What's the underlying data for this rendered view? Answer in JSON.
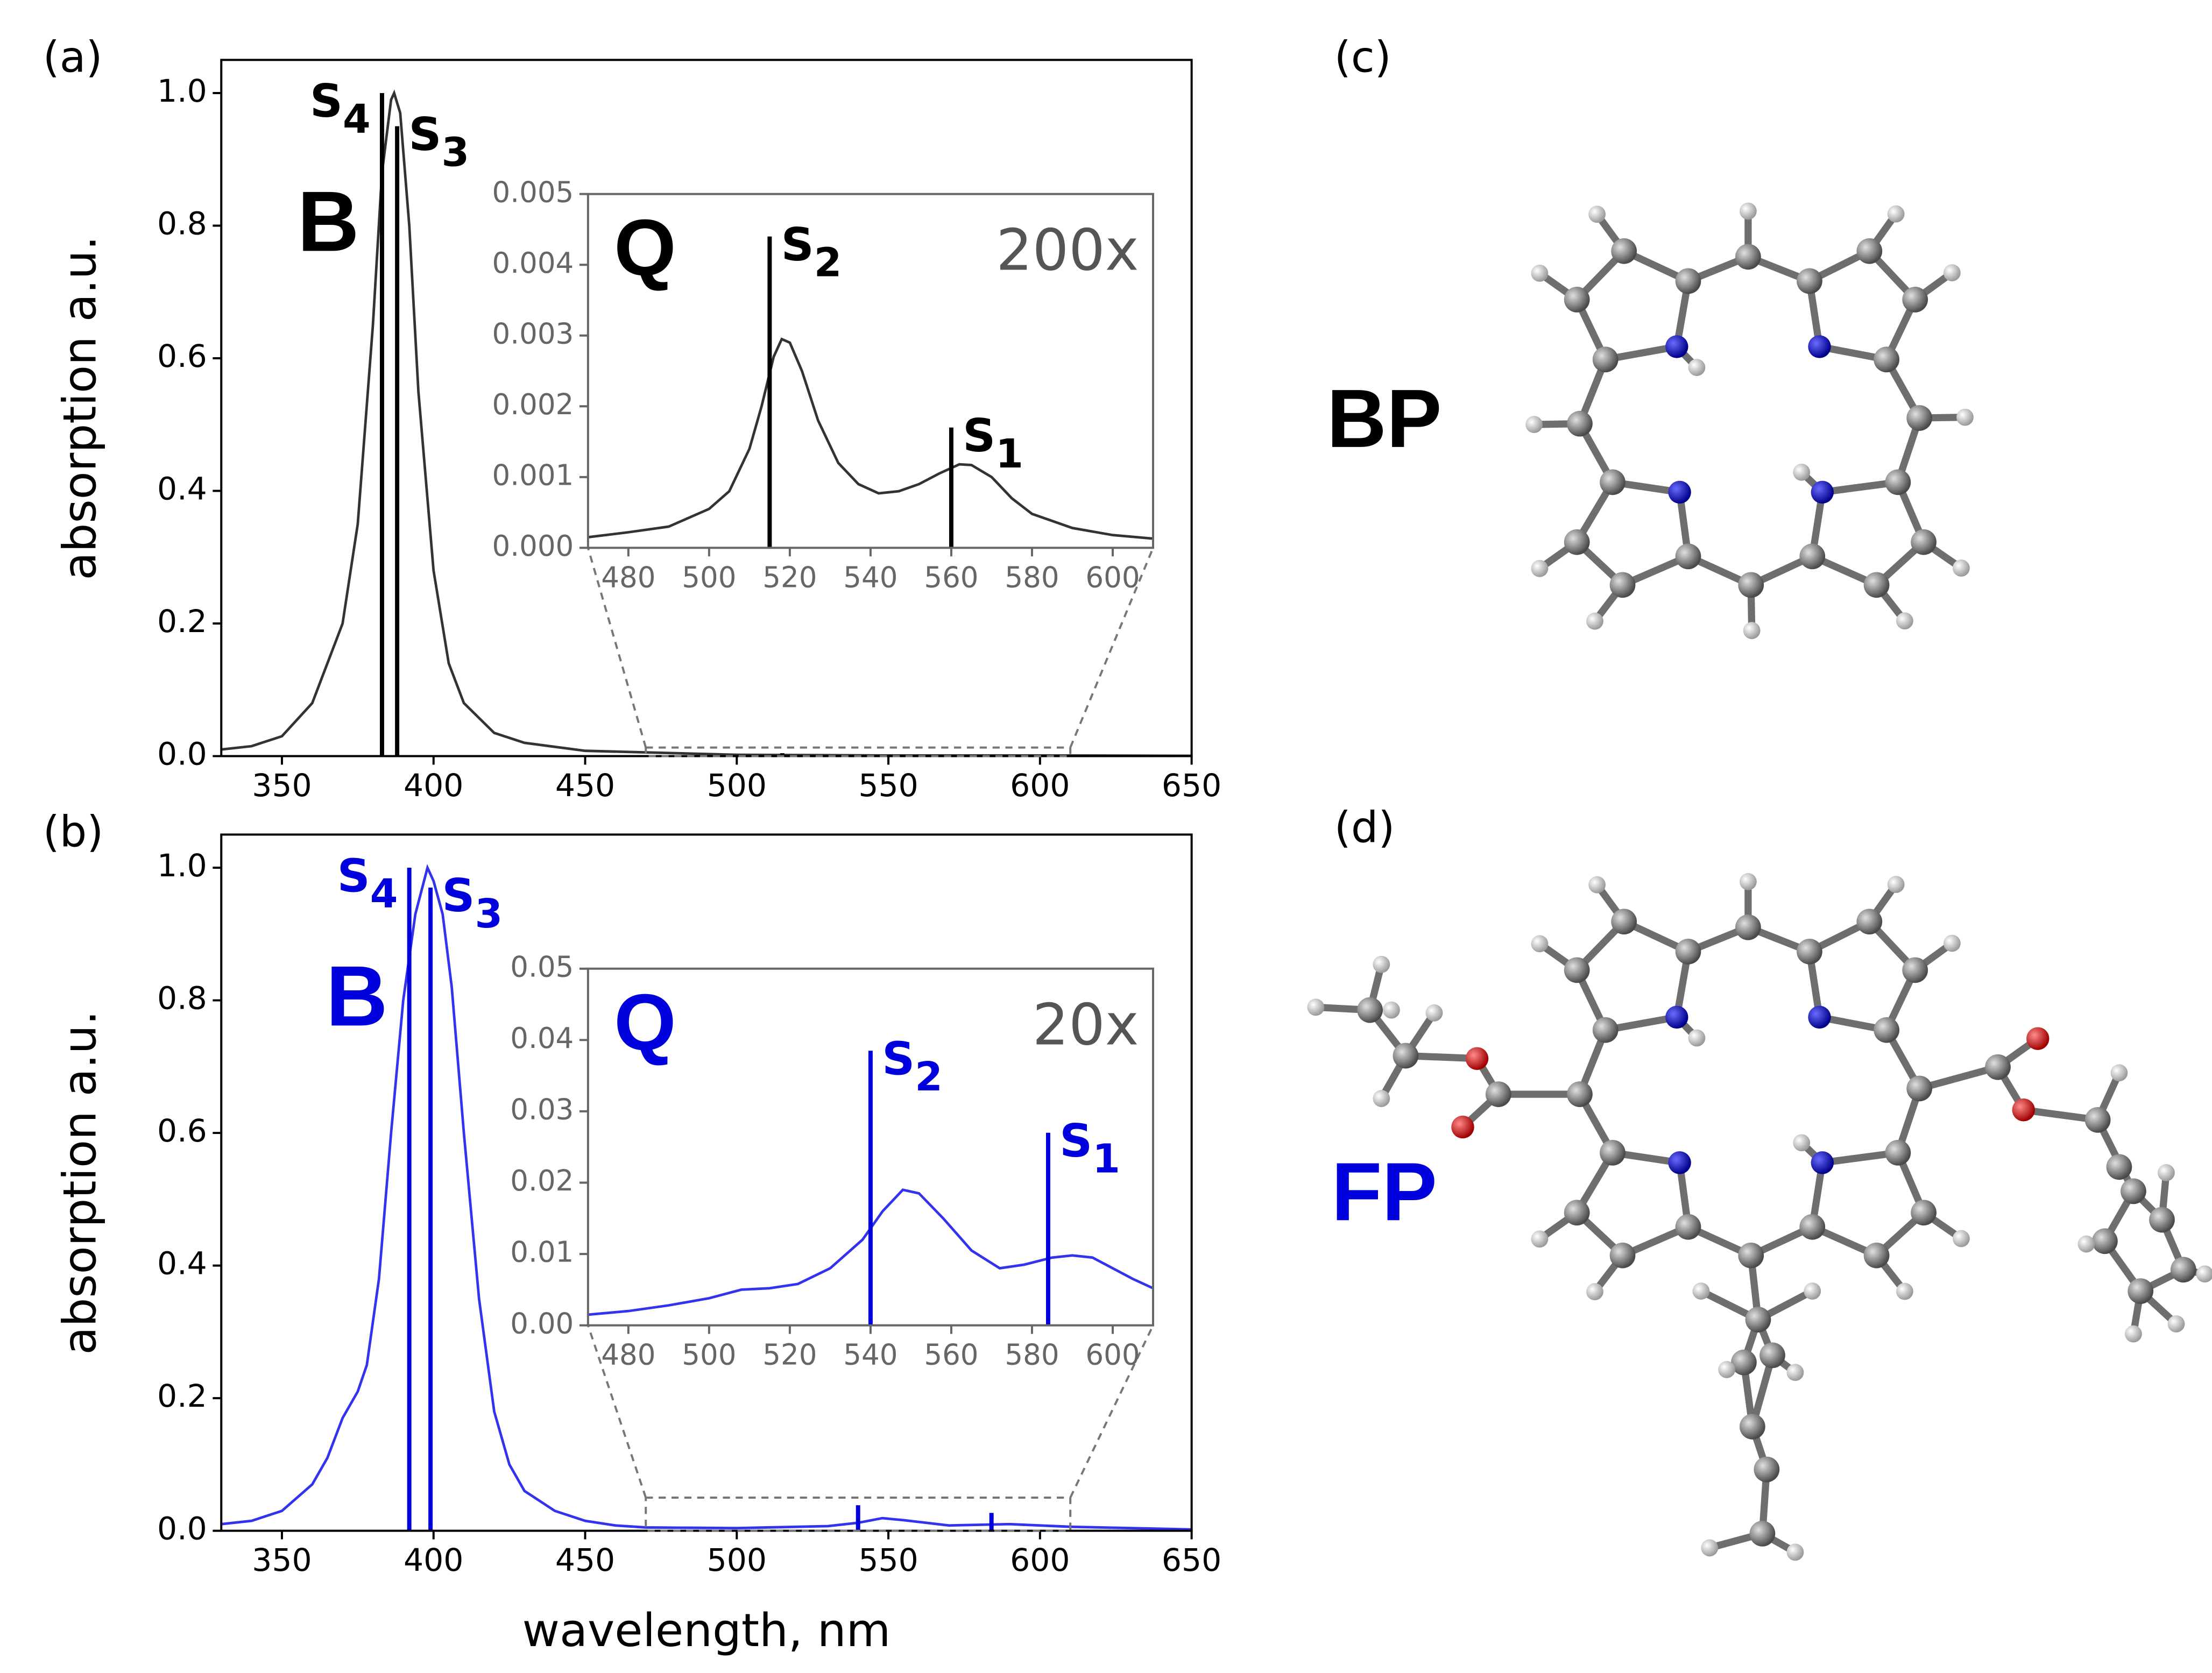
{
  "chart_data": [
    {
      "type": "line",
      "panel_label": "(a)",
      "band_label": "B",
      "ylabel": "absorption a.u.",
      "x": [
        330,
        340,
        350,
        360,
        365,
        370,
        375,
        380,
        383,
        386,
        387,
        389,
        392,
        395,
        400,
        405,
        410,
        420,
        430,
        450,
        500,
        550,
        600,
        650
      ],
      "series": [
        {
          "color": "#333333",
          "values": [
            0.01,
            0.015,
            0.03,
            0.08,
            0.14,
            0.2,
            0.35,
            0.65,
            0.88,
            0.99,
            1.0,
            0.97,
            0.8,
            0.55,
            0.28,
            0.14,
            0.08,
            0.035,
            0.02,
            0.008,
            0.002,
            0.001,
            0.001,
            0.0005
          ]
        }
      ],
      "sticks": {
        "color": "#000000",
        "x": [
          383,
          388
        ],
        "values": [
          1.0,
          0.95
        ],
        "labels": [
          {
            "letter": "S",
            "sub": "4"
          },
          {
            "letter": "S",
            "sub": "3"
          }
        ]
      },
      "label_color": "#000000",
      "xlim": [
        330,
        650
      ],
      "ylim": [
        0,
        1.05
      ],
      "xticks": [
        350,
        400,
        450,
        500,
        550,
        600,
        650
      ],
      "yticks": [
        {
          "value": 0,
          "label": "0.0"
        },
        0.2,
        0.4,
        0.6,
        0.8,
        {
          "value": 1,
          "label": "1.0"
        }
      ]
    },
    {
      "type": "line",
      "band_label": "Q",
      "magnification": "200x",
      "x": [
        470,
        480,
        490,
        500,
        505,
        510,
        513,
        516,
        518,
        520,
        523,
        527,
        532,
        537,
        542,
        547,
        552,
        557,
        562,
        565,
        570,
        575,
        580,
        590,
        600,
        610
      ],
      "series": [
        {
          "color": "#333333",
          "values": [
            0.00015,
            0.00022,
            0.0003,
            0.00055,
            0.0008,
            0.0014,
            0.002,
            0.0027,
            0.00295,
            0.0029,
            0.0025,
            0.0018,
            0.0012,
            0.0009,
            0.00077,
            0.0008,
            0.0009,
            0.00105,
            0.00118,
            0.00117,
            0.001,
            0.0007,
            0.00048,
            0.00028,
            0.00018,
            0.00013
          ]
        }
      ],
      "sticks": {
        "color": "#000000",
        "x": [
          515,
          560
        ],
        "values": [
          0.0044,
          0.0017
        ],
        "labels": [
          {
            "letter": "S",
            "sub": "2"
          },
          {
            "letter": "S",
            "sub": "1"
          }
        ]
      },
      "label_color": "#000000",
      "xlim": [
        470,
        610
      ],
      "ylim": [
        0,
        0.005
      ],
      "xticks": [
        480,
        500,
        520,
        540,
        560,
        580,
        600
      ],
      "yticks": [
        {
          "value": 0,
          "label": "0.000"
        },
        {
          "value": 0.001,
          "label": "0.001"
        },
        {
          "value": 0.002,
          "label": "0.002"
        },
        {
          "value": 0.003,
          "label": "0.003"
        },
        {
          "value": 0.004,
          "label": "0.004"
        },
        {
          "value": 0.005,
          "label": "0.005"
        }
      ]
    },
    {
      "type": "line",
      "panel_label": "(b)",
      "band_label": "B",
      "ylabel": "absorption a.u.",
      "xlabel": "wavelength, nm",
      "x": [
        330,
        340,
        350,
        360,
        365,
        370,
        375,
        378,
        382,
        386,
        390,
        394,
        398,
        400,
        403,
        406,
        410,
        415,
        420,
        425,
        430,
        440,
        450,
        460,
        470,
        500,
        510,
        530,
        540,
        548,
        555,
        570,
        590,
        610,
        650
      ],
      "series": [
        {
          "color": "#3333ee",
          "values": [
            0.01,
            0.015,
            0.03,
            0.07,
            0.11,
            0.17,
            0.21,
            0.25,
            0.38,
            0.6,
            0.8,
            0.93,
            1.0,
            0.98,
            0.93,
            0.82,
            0.6,
            0.35,
            0.18,
            0.1,
            0.06,
            0.03,
            0.015,
            0.008,
            0.005,
            0.004,
            0.005,
            0.007,
            0.012,
            0.019,
            0.016,
            0.008,
            0.01,
            0.006,
            0.002
          ]
        }
      ],
      "sticks": {
        "color": "#0000dd",
        "x": [
          392,
          399
        ],
        "values": [
          1.0,
          0.97
        ],
        "labels": [
          {
            "letter": "S",
            "sub": "4"
          },
          {
            "letter": "S",
            "sub": "3"
          }
        ]
      },
      "label_color": "#0000dd",
      "xlim": [
        330,
        650
      ],
      "ylim": [
        0,
        1.05
      ],
      "xticks": [
        350,
        400,
        450,
        500,
        550,
        600,
        650
      ],
      "yticks": [
        {
          "value": 0,
          "label": "0.0"
        },
        0.2,
        0.4,
        0.6,
        0.8,
        {
          "value": 1,
          "label": "1.0"
        }
      ]
    },
    {
      "type": "line",
      "band_label": "Q",
      "magnification": "20x",
      "x": [
        470,
        480,
        490,
        500,
        508,
        515,
        522,
        530,
        538,
        543,
        548,
        552,
        558,
        565,
        572,
        578,
        585,
        590,
        595,
        600,
        605,
        610
      ],
      "series": [
        {
          "color": "#3333ee",
          "values": [
            0.0015,
            0.002,
            0.0028,
            0.0038,
            0.005,
            0.0052,
            0.0058,
            0.008,
            0.012,
            0.016,
            0.019,
            0.0185,
            0.015,
            0.0105,
            0.008,
            0.0085,
            0.0095,
            0.0098,
            0.0095,
            0.008,
            0.0065,
            0.0052
          ]
        }
      ],
      "sticks": {
        "color": "#0000dd",
        "x": [
          540,
          584
        ],
        "values": [
          0.0385,
          0.027
        ],
        "labels": [
          {
            "letter": "S",
            "sub": "2"
          },
          {
            "letter": "S",
            "sub": "1"
          }
        ]
      },
      "label_color": "#0000dd",
      "xlim": [
        470,
        610
      ],
      "ylim": [
        0,
        0.05
      ],
      "xticks": [
        480,
        500,
        520,
        540,
        560,
        580,
        600
      ],
      "yticks": [
        {
          "value": 0,
          "label": "0.00"
        },
        {
          "value": 0.01,
          "label": "0.01"
        },
        {
          "value": 0.02,
          "label": "0.02"
        },
        {
          "value": 0.03,
          "label": "0.03"
        },
        {
          "value": 0.04,
          "label": "0.04"
        },
        {
          "value": 0.05,
          "label": "0.05"
        }
      ]
    }
  ],
  "molecules": {
    "c": {
      "panel_label": "(c)",
      "name": "BP",
      "color": "#000000"
    },
    "d": {
      "panel_label": "(d)",
      "name": "FP",
      "color": "#0000dd"
    }
  }
}
